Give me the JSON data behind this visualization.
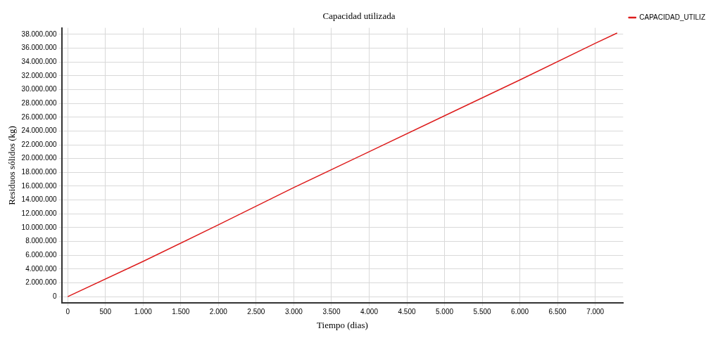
{
  "chart_data": {
    "type": "line",
    "title": "Capacidad utilizada",
    "xlabel": "Tiempo (dias)",
    "ylabel": "Residuos sólidos (kg)",
    "x": [
      0,
      1000,
      2000,
      3000,
      4000,
      5000,
      6000,
      7000,
      7290
    ],
    "series": [
      {
        "name": "CAPACIDAD_UTILIZ",
        "color": "#dd1c1c",
        "values": [
          0,
          5100000,
          10400000,
          15800000,
          21000000,
          26200000,
          31400000,
          36700000,
          38200000
        ]
      }
    ],
    "xlim": [
      -80,
      7370
    ],
    "xticks": [
      0,
      500,
      {
        "value": 1000,
        "label": "1.000"
      },
      {
        "value": 1500,
        "label": "1.500"
      },
      {
        "value": 2000,
        "label": "2.000"
      },
      {
        "value": 2500,
        "label": "2.500"
      },
      {
        "value": 3000,
        "label": "3.000"
      },
      {
        "value": 3500,
        "label": "3.500"
      },
      {
        "value": 4000,
        "label": "4.000"
      },
      {
        "value": 4500,
        "label": "4.500"
      },
      {
        "value": 5000,
        "label": "5.000"
      },
      {
        "value": 5500,
        "label": "5.500"
      },
      {
        "value": 6000,
        "label": "6.000"
      },
      {
        "value": 6500,
        "label": "6.500"
      },
      {
        "value": 7000,
        "label": "7.000"
      }
    ],
    "ylim": [
      -950000,
      38950000
    ],
    "yticks": [
      0,
      {
        "value": 2000000,
        "label": "2.000.000"
      },
      {
        "value": 4000000,
        "label": "4.000.000"
      },
      {
        "value": 6000000,
        "label": "6.000.000"
      },
      {
        "value": 8000000,
        "label": "8.000.000"
      },
      {
        "value": 10000000,
        "label": "10.000.000"
      },
      {
        "value": 12000000,
        "label": "12.000.000"
      },
      {
        "value": 14000000,
        "label": "14.000.000"
      },
      {
        "value": 16000000,
        "label": "16.000.000"
      },
      {
        "value": 18000000,
        "label": "18.000.000"
      },
      {
        "value": 20000000,
        "label": "20.000.000"
      },
      {
        "value": 22000000,
        "label": "22.000.000"
      },
      {
        "value": 24000000,
        "label": "24.000.000"
      },
      {
        "value": 26000000,
        "label": "26.000.000"
      },
      {
        "value": 28000000,
        "label": "28.000.000"
      },
      {
        "value": 30000000,
        "label": "30.000.000"
      },
      {
        "value": 32000000,
        "label": "32.000.000"
      },
      {
        "value": 34000000,
        "label": "34.000.000"
      },
      {
        "value": 36000000,
        "label": "36.000.000"
      },
      {
        "value": 38000000,
        "label": "38.000.000"
      }
    ],
    "grid": true,
    "legend": "right",
    "marker": "none",
    "line_style": "solid"
  }
}
